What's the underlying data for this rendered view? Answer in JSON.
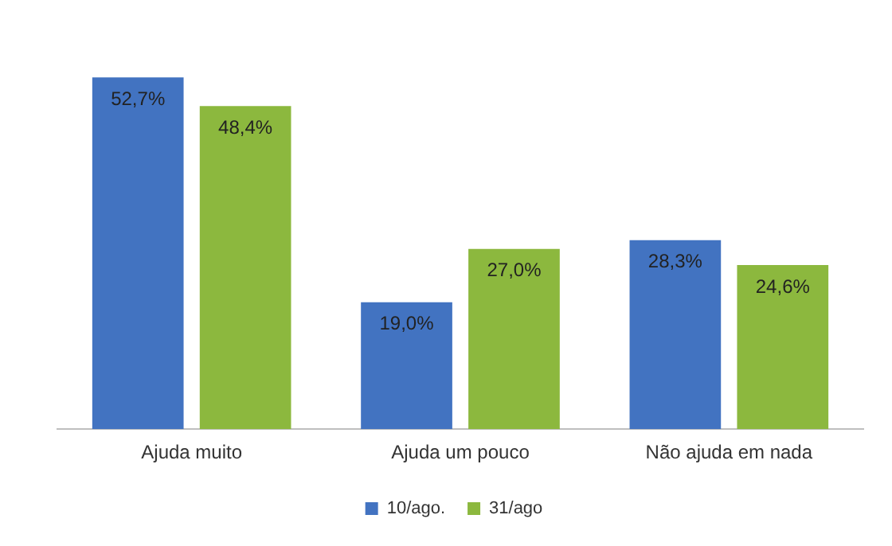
{
  "chart_data": {
    "type": "bar",
    "categories": [
      "Ajuda muito",
      "Ajuda um pouco",
      "Não ajuda em nada"
    ],
    "series": [
      {
        "name": "10/ago.",
        "color": "#4273c1",
        "values": [
          52.7,
          19.0,
          28.3
        ],
        "value_labels": [
          "52,7%",
          "19,0%",
          "28,3%"
        ]
      },
      {
        "name": "31/ago",
        "color": "#8cb83e",
        "values": [
          48.4,
          27.0,
          24.6
        ],
        "value_labels": [
          "48,4%",
          "27,0%",
          "24,6%"
        ]
      }
    ],
    "relative": false,
    "legend": "bottom",
    "grid": false
  }
}
